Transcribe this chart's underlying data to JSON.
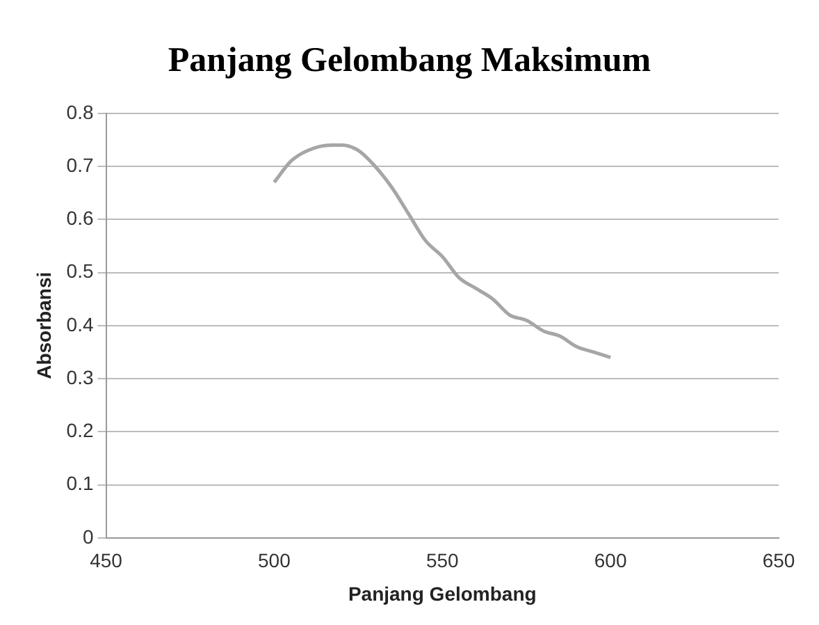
{
  "chart_data": {
    "type": "line",
    "title": "Panjang Gelombang Maksimum",
    "xlabel": "Panjang Gelombang",
    "ylabel": "Absorbansi",
    "x": [
      500,
      505,
      510,
      517,
      520,
      525,
      530,
      535,
      540,
      545,
      550,
      555,
      560,
      565,
      570,
      575,
      580,
      585,
      590,
      595,
      600
    ],
    "series": [
      {
        "color": "#a6a6a6",
        "values": [
          0.67,
          0.71,
          0.73,
          0.74,
          0.74,
          0.73,
          0.7,
          0.66,
          0.61,
          0.56,
          0.53,
          0.49,
          0.47,
          0.45,
          0.42,
          0.41,
          0.39,
          0.38,
          0.36,
          0.35,
          0.34
        ]
      }
    ],
    "xlim": [
      450,
      650
    ],
    "xticks": [
      450,
      500,
      550,
      600,
      650
    ],
    "ylim": [
      0,
      0.8
    ],
    "yticks": [
      0,
      0.1,
      0.2,
      0.3,
      0.4,
      0.5,
      0.6,
      0.7,
      0.8
    ],
    "grid": "y",
    "legend": false,
    "marker": "none",
    "line_style": "solid"
  }
}
